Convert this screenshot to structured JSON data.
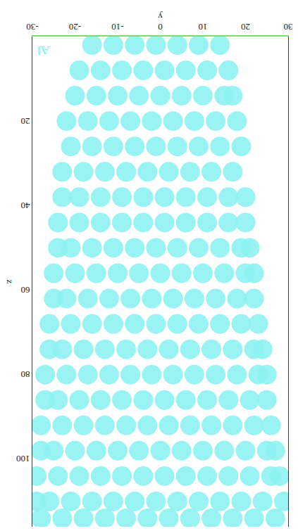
{
  "chart_data": {
    "type": "scatter",
    "x_label": "y",
    "y_label": "z",
    "xlim": [
      -30,
      30
    ],
    "ylim": [
      0,
      116
    ],
    "xticks": [
      -30,
      -20,
      -10,
      0,
      10,
      20,
      30
    ],
    "yticks": [
      20,
      40,
      60,
      80,
      100
    ],
    "grid": false,
    "series": [
      {
        "name": "Al",
        "color": "#8ef2f2",
        "marker": "circle",
        "x": [
          -16,
          -11,
          -6,
          -1,
          4,
          9,
          14,
          -19,
          -14,
          -9,
          -4,
          1,
          6,
          11,
          16,
          -20,
          -15,
          -10,
          -5,
          0,
          5,
          10,
          15,
          17,
          -22,
          -17,
          -12,
          -7,
          -2,
          3,
          8,
          13,
          18,
          -21,
          -16,
          -11,
          -6,
          -1,
          4,
          9,
          14,
          19,
          -23,
          -18,
          -13,
          -8,
          -3,
          2,
          7,
          12,
          17,
          -23,
          -19,
          -14,
          -9,
          -4,
          1,
          6,
          11,
          16,
          20,
          -24,
          -19,
          -14,
          -9,
          -4,
          1,
          6,
          11,
          16,
          20,
          -24,
          -21,
          -16,
          -11,
          -6,
          -1,
          4,
          9,
          14,
          19,
          21,
          -25,
          -20,
          -15,
          -10,
          -5,
          0,
          5,
          10,
          15,
          20,
          22,
          -25,
          -22,
          -17,
          -12,
          -7,
          -2,
          3,
          8,
          13,
          18,
          22,
          -26,
          -21,
          -16,
          -11,
          -6,
          -1,
          4,
          9,
          14,
          19,
          23,
          -26,
          -23,
          -18,
          -13,
          -8,
          -3,
          2,
          7,
          12,
          17,
          22,
          24,
          -27,
          -22,
          -17,
          -12,
          -7,
          -2,
          3,
          8,
          13,
          18,
          23,
          25,
          -27,
          -24,
          -19,
          -14,
          -9,
          -4,
          1,
          6,
          11,
          16,
          21,
          25,
          -28,
          -23,
          -18,
          -13,
          -8,
          -3,
          2,
          7,
          12,
          17,
          22,
          26,
          -28,
          -25,
          -20,
          -15,
          -10,
          -5,
          0,
          5,
          10,
          15,
          20,
          25,
          27,
          -29,
          -24,
          -19,
          -14,
          -9,
          -4,
          1,
          6,
          11,
          16,
          21,
          26,
          28,
          -29,
          -26,
          -21,
          -16,
          -11,
          -6,
          -1,
          4,
          9,
          14,
          19,
          24,
          29,
          -28,
          -23,
          -18,
          -13,
          -8,
          -3,
          2,
          7,
          12,
          17,
          22,
          27
        ],
        "values": [
          2,
          2,
          2,
          2,
          2,
          2,
          2,
          8,
          8,
          8,
          8,
          8,
          8,
          8,
          8,
          14,
          14,
          14,
          14,
          14,
          14,
          14,
          14,
          14,
          20,
          20,
          20,
          20,
          20,
          20,
          20,
          20,
          20,
          26,
          26,
          26,
          26,
          26,
          26,
          26,
          26,
          26,
          32,
          32,
          32,
          32,
          32,
          32,
          32,
          32,
          32,
          38,
          38,
          38,
          38,
          38,
          38,
          38,
          38,
          38,
          38,
          44,
          44,
          44,
          44,
          44,
          44,
          44,
          44,
          44,
          44,
          50,
          50,
          50,
          50,
          50,
          50,
          50,
          50,
          50,
          50,
          50,
          56,
          56,
          56,
          56,
          56,
          56,
          56,
          56,
          56,
          56,
          56,
          62,
          62,
          62,
          62,
          62,
          62,
          62,
          62,
          62,
          62,
          62,
          68,
          68,
          68,
          68,
          68,
          68,
          68,
          68,
          68,
          68,
          68,
          74,
          74,
          74,
          74,
          74,
          74,
          74,
          74,
          74,
          74,
          74,
          74,
          80,
          80,
          80,
          80,
          80,
          80,
          80,
          80,
          80,
          80,
          80,
          80,
          86,
          86,
          86,
          86,
          86,
          86,
          86,
          86,
          86,
          86,
          86,
          86,
          92,
          92,
          92,
          92,
          92,
          92,
          92,
          92,
          92,
          92,
          92,
          92,
          98,
          98,
          98,
          98,
          98,
          98,
          98,
          98,
          98,
          98,
          98,
          98,
          98,
          104,
          104,
          104,
          104,
          104,
          104,
          104,
          104,
          104,
          104,
          104,
          104,
          104,
          110,
          110,
          110,
          110,
          110,
          110,
          110,
          110,
          110,
          110,
          110,
          110,
          110,
          114,
          114,
          114,
          114,
          114,
          114,
          114,
          114,
          114,
          114,
          114,
          114
        ]
      }
    ]
  }
}
